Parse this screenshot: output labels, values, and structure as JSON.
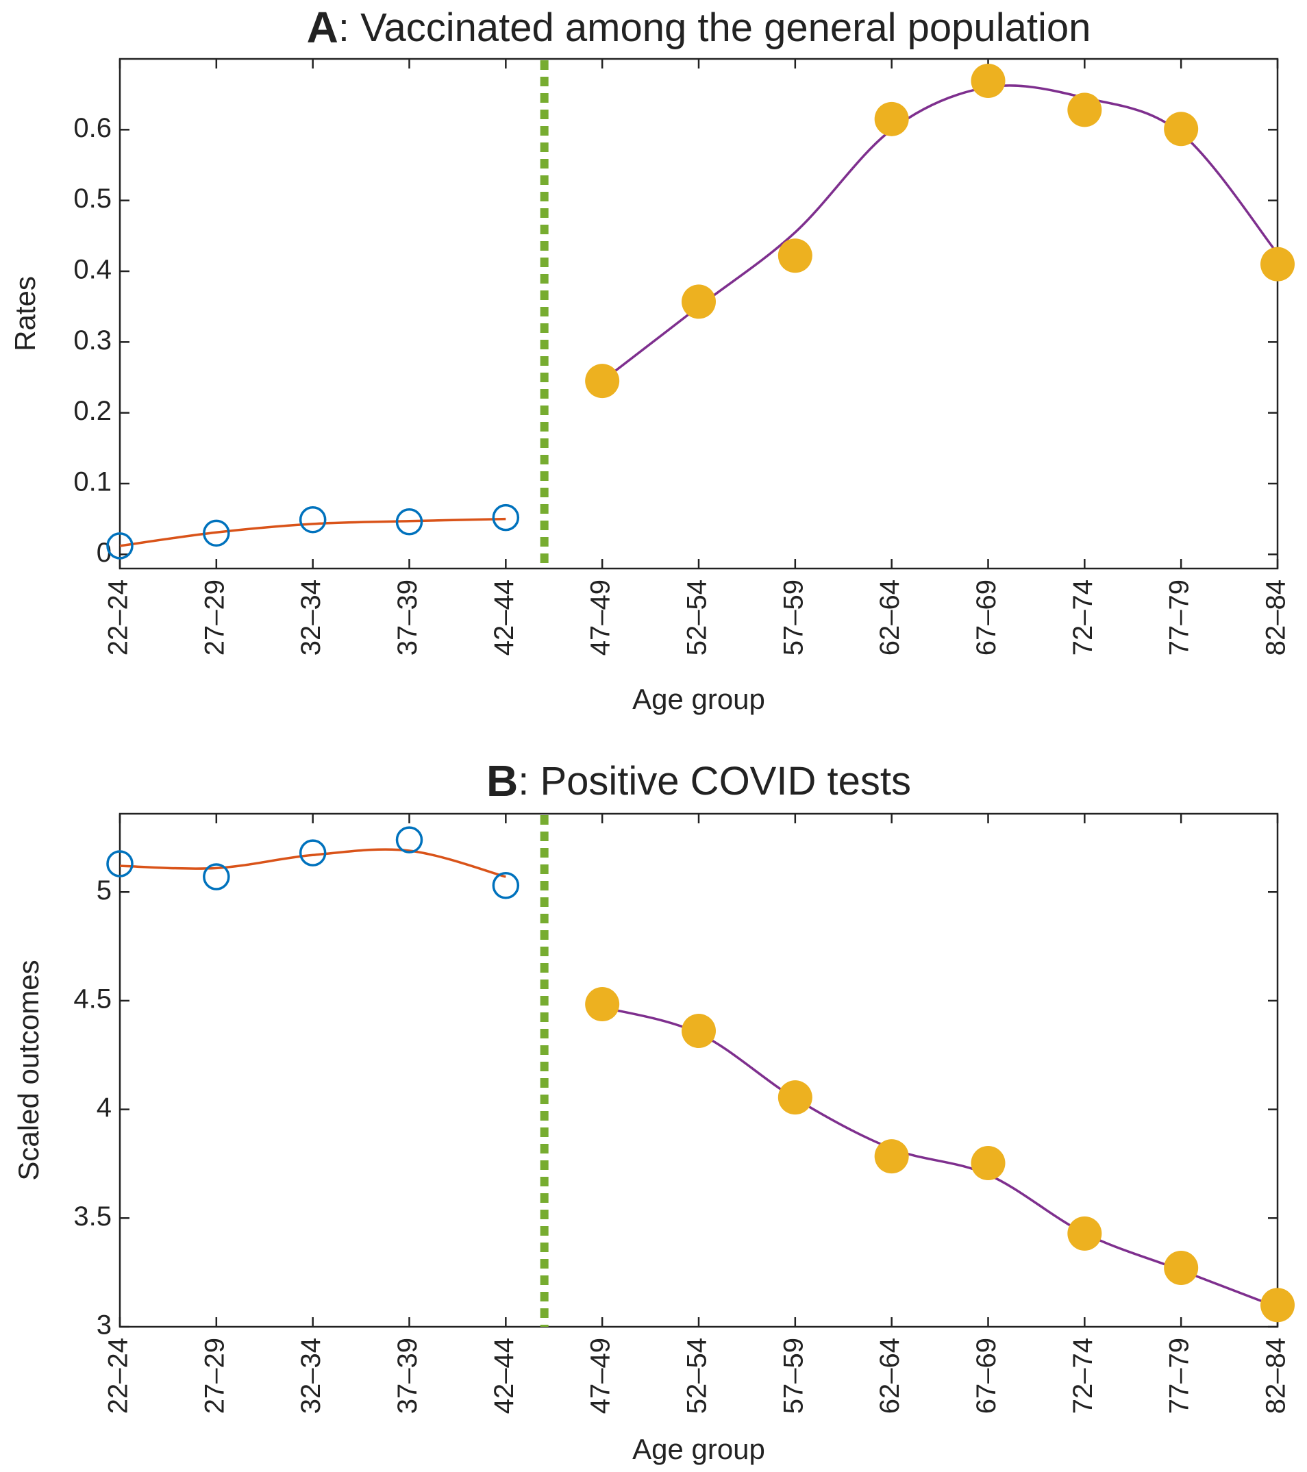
{
  "chart_data": [
    {
      "type": "line",
      "title_letter": "A",
      "title": ": Vaccinated among the general population",
      "xlabel": "Age group",
      "ylabel": "Rates",
      "categories": [
        "22–24",
        "27–29",
        "32–34",
        "37–39",
        "42–44",
        "47–49",
        "52–54",
        "57–59",
        "62–64",
        "67–69",
        "72–74",
        "77–79",
        "82–84"
      ],
      "ylim": [
        -0.02,
        0.7
      ],
      "yticks": [
        0,
        0.1,
        0.2,
        0.3,
        0.4,
        0.5,
        0.6
      ],
      "series": [
        {
          "style": "open-circle",
          "color": "#0072bd",
          "values": [
            0.012,
            0.03,
            0.049,
            0.046,
            0.052,
            null,
            null,
            null,
            null,
            null,
            null,
            null,
            null
          ]
        },
        {
          "style": "filled-circle",
          "color": "#edb120",
          "values": [
            null,
            null,
            null,
            null,
            null,
            0.245,
            0.357,
            0.422,
            0.615,
            0.669,
            0.628,
            0.601,
            0.41
          ]
        },
        {
          "style": "curve",
          "color": "#d95319",
          "values": [
            0.012,
            0.031,
            0.043,
            0.047,
            0.05,
            null,
            null,
            null,
            null,
            null,
            null,
            null,
            null
          ]
        },
        {
          "style": "curve",
          "color": "#7e2f8e",
          "values": [
            null,
            null,
            null,
            null,
            null,
            0.245,
            0.35,
            0.455,
            0.6,
            0.66,
            0.645,
            0.595,
            0.425
          ]
        }
      ]
    },
    {
      "type": "line",
      "title_letter": "B",
      "title": ": Positive COVID tests",
      "xlabel": "Age group",
      "ylabel": "Scaled outcomes",
      "categories": [
        "22–24",
        "27–29",
        "32–34",
        "37–39",
        "42–44",
        "47–49",
        "52–54",
        "57–59",
        "62–64",
        "67–69",
        "72–74",
        "77–79",
        "82–84"
      ],
      "ylim": [
        3,
        5.36
      ],
      "yticks": [
        3,
        3.5,
        4,
        4.5,
        5
      ],
      "series": [
        {
          "style": "open-circle",
          "color": "#0072bd",
          "values": [
            5.13,
            5.07,
            5.18,
            5.24,
            5.03,
            null,
            null,
            null,
            null,
            null,
            null,
            null,
            null
          ]
        },
        {
          "style": "filled-circle",
          "color": "#edb120",
          "values": [
            null,
            null,
            null,
            null,
            null,
            4.484,
            4.361,
            4.055,
            3.784,
            3.753,
            3.429,
            3.271,
            3.1
          ]
        },
        {
          "style": "curve",
          "color": "#d95319",
          "values": [
            5.12,
            5.11,
            5.17,
            5.19,
            5.07,
            null,
            null,
            null,
            null,
            null,
            null,
            null,
            null
          ]
        },
        {
          "style": "curve",
          "color": "#7e2f8e",
          "values": [
            null,
            null,
            null,
            null,
            null,
            4.47,
            4.35,
            4.05,
            3.82,
            3.7,
            3.43,
            3.26,
            3.09
          ]
        }
      ]
    }
  ]
}
